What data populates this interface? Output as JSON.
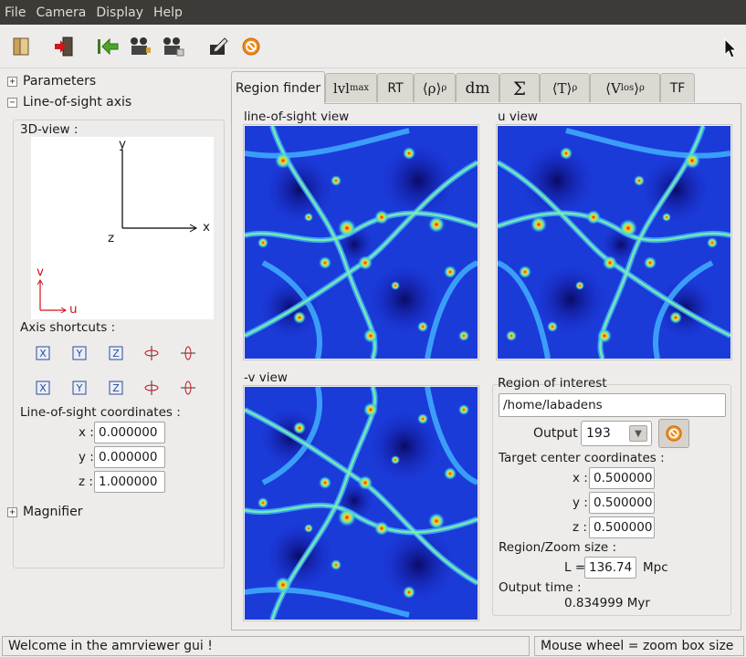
{
  "menubar": {
    "items": [
      "File",
      "Camera",
      "Display",
      "Help"
    ]
  },
  "toolbar": {
    "icons": [
      "book-open-icon",
      "exit-door-icon",
      "back-arrow-icon",
      "camera-people-icon",
      "camera-group-icon",
      "edit-icon",
      "stop-circle-icon"
    ]
  },
  "left_panel": {
    "parameters_label": "Parameters",
    "los_axis_label": "Line-of-sight axis",
    "view3d_label": "3D-view :",
    "view3d": {
      "y": "y",
      "x": "x",
      "z": "z",
      "v": "v",
      "u": "u"
    },
    "axis_shortcuts_label": "Axis shortcuts :",
    "axis_buttons": [
      "X",
      "Y",
      "Z"
    ],
    "los_coords_label": "Line-of-sight coordinates :",
    "coords": [
      {
        "label": "x :",
        "value": "0.000000"
      },
      {
        "label": "y :",
        "value": "0.000000"
      },
      {
        "label": "z :",
        "value": "1.000000"
      }
    ],
    "magnifier_label": "Magnifier"
  },
  "tabs": [
    {
      "main": "Region finder",
      "sub": ""
    },
    {
      "main": "lvl",
      "sub": "max"
    },
    {
      "main": "RT",
      "sub": ""
    },
    {
      "main": "⟨ρ⟩",
      "sub": "ρ"
    },
    {
      "main": "dm",
      "sub": ""
    },
    {
      "main": "Σ",
      "sub": ""
    },
    {
      "main": "⟨T⟩",
      "sub": "ρ"
    },
    {
      "main": "⟨V",
      "sub": "los",
      "post": "⟩",
      "sub2": "ρ"
    },
    {
      "main": "TF",
      "sub": ""
    }
  ],
  "views": {
    "los_label": "line-of-sight view",
    "u_label": "u view",
    "v_label": "-v view"
  },
  "roi": {
    "title": "Region of interest",
    "path": "/home/labadens",
    "output_label": "Output",
    "output_value": "193",
    "target_label": "Target center coordinates :",
    "target": [
      {
        "label": "x :",
        "value": "0.500000"
      },
      {
        "label": "y :",
        "value": "0.500000"
      },
      {
        "label": "z :",
        "value": "0.500000"
      }
    ],
    "zoom_label": "Region/Zoom size :",
    "L_label": "L =",
    "L_value": "136.74",
    "L_unit": "Mpc",
    "output_time_label": "Output time :",
    "output_time_value": "0.834999 Myr"
  },
  "status": {
    "left": "Welcome in the amrviewer gui !",
    "right": "Mouse wheel = zoom box size"
  },
  "colors": {
    "menubar_bg": "#3c3b37",
    "window_bg": "#edeceb",
    "heat_low": "#00008f",
    "heat_high": "#ff2000"
  }
}
